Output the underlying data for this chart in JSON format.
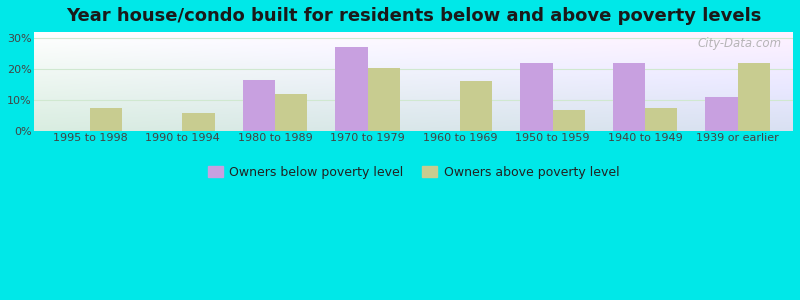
{
  "title": "Year house/condo built for residents below and above poverty levels",
  "categories": [
    "1995 to 1998",
    "1990 to 1994",
    "1980 to 1989",
    "1970 to 1979",
    "1960 to 1969",
    "1950 to 1959",
    "1940 to 1949",
    "1939 or earlier"
  ],
  "below_poverty": [
    0,
    0,
    16.5,
    27.0,
    0,
    22.0,
    22.0,
    11.0
  ],
  "above_poverty": [
    7.5,
    5.8,
    12.0,
    20.5,
    16.0,
    6.8,
    7.5,
    22.0
  ],
  "below_color": "#c8a0e0",
  "above_color": "#c8cc90",
  "background_outer": "#00e8e8",
  "ylim": [
    0,
    32
  ],
  "yticks": [
    0,
    10,
    20,
    30
  ],
  "ytick_labels": [
    "0%",
    "10%",
    "20%",
    "30%"
  ],
  "bar_width": 0.35,
  "legend_below": "Owners below poverty level",
  "legend_above": "Owners above poverty level",
  "title_fontsize": 13,
  "tick_fontsize": 8,
  "legend_fontsize": 9,
  "watermark": "City-Data.com"
}
